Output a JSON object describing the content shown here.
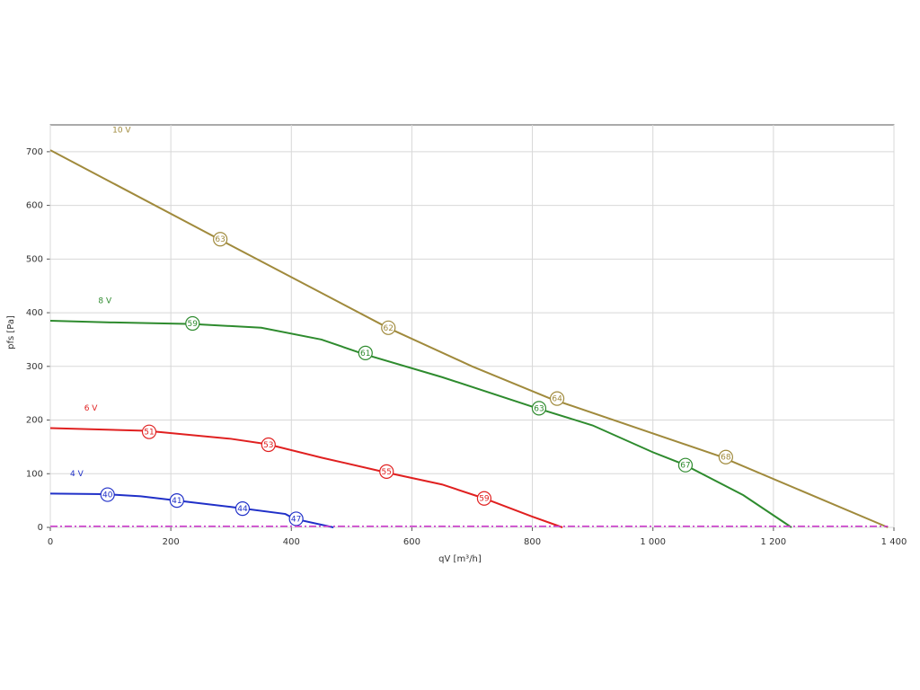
{
  "chart_data": {
    "type": "line",
    "xlabel": "qV [m³/h]",
    "ylabel": "pfs [Pa]",
    "xlim": [
      0,
      1400
    ],
    "ylim": [
      0,
      750
    ],
    "xticks": [
      0,
      200,
      400,
      600,
      800,
      {
        "value": 1000,
        "label": "1 000"
      },
      {
        "value": 1200,
        "label": "1 200"
      },
      {
        "value": 1400,
        "label": "1 400"
      }
    ],
    "yticks": [
      0,
      100,
      200,
      300,
      400,
      500,
      600,
      700
    ],
    "grid": true,
    "series": [
      {
        "name": "10 V",
        "color": "#a08a3c",
        "x": [
          0,
          280,
          560,
          700,
          830,
          1110,
          1390
        ],
        "values": [
          703,
          537,
          372,
          300,
          240,
          133,
          0
        ],
        "points": {
          "x": [
            282,
            561,
            841,
            1121
          ],
          "y": [
            537,
            372,
            240,
            131
          ],
          "labels": [
            63,
            62,
            64,
            68
          ]
        }
      },
      {
        "name": "8 V",
        "color": "#2e8b2e",
        "x": [
          0,
          100,
          235,
          350,
          450,
          520,
          650,
          808,
          900,
          1000,
          1050,
          1150,
          1230
        ],
        "values": [
          385,
          382,
          379,
          372,
          350,
          323,
          280,
          222,
          190,
          140,
          118,
          60,
          0
        ],
        "points": {
          "x": [
            236,
            523,
            811,
            1054
          ],
          "y": [
            380,
            325,
            222,
            116
          ],
          "labels": [
            59,
            61,
            63,
            67
          ]
        }
      },
      {
        "name": "6 V",
        "color": "#e02020",
        "x": [
          0,
          160,
          300,
          360,
          450,
          555,
          650,
          720,
          800,
          850
        ],
        "values": [
          185,
          180,
          165,
          155,
          130,
          103,
          80,
          54,
          20,
          0
        ],
        "points": {
          "x": [
            164,
            362,
            558,
            720
          ],
          "y": [
            178,
            154,
            104,
            54
          ],
          "labels": [
            51,
            53,
            55,
            59
          ]
        }
      },
      {
        "name": "4 V",
        "color": "#2030c8",
        "x": [
          0,
          90,
          150,
          210,
          300,
          390,
          405,
          470
        ],
        "values": [
          63,
          62,
          58,
          50,
          38,
          25,
          16,
          0
        ],
        "points": {
          "x": [
            95,
            210,
            319,
            408
          ],
          "y": [
            61,
            50,
            35,
            16
          ],
          "labels": [
            40,
            41,
            44,
            47
          ]
        }
      },
      {
        "color": "#cc33cc",
        "dash": true,
        "x": [
          0,
          1390
        ],
        "values": [
          2,
          2
        ]
      }
    ]
  }
}
